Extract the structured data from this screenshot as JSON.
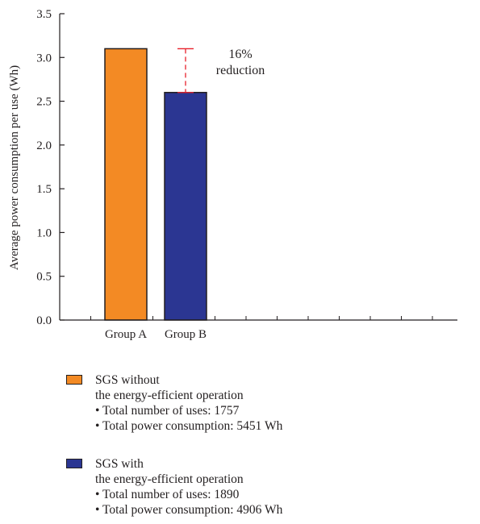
{
  "chart_data": {
    "type": "bar",
    "categories": [
      "Group A",
      "Group B"
    ],
    "values": [
      3.1,
      2.6
    ],
    "colors": [
      "#f38a24",
      "#2b3692"
    ],
    "xlabel": "",
    "ylabel": "Average power consumption per use (Wh)",
    "ylim": [
      0,
      3.5
    ],
    "yticks": [
      "0.0",
      "0.5",
      "1.0",
      "1.5",
      "2.0",
      "2.5",
      "3.0",
      "3.5"
    ],
    "grid": false,
    "annotation": {
      "line1": "16%",
      "line2": "reduction",
      "from_value": 3.1,
      "to_value": 2.6,
      "color": "#e8212b"
    }
  },
  "legend": [
    {
      "color": "#f38a24",
      "lines": [
        "SGS without",
        "the energy-efficient operation"
      ],
      "bullets": [
        "• Total number of uses: 1757",
        "• Total power consumption: 5451 Wh"
      ]
    },
    {
      "color": "#2b3692",
      "lines": [
        "SGS with",
        "the energy-efficient operation"
      ],
      "bullets": [
        "• Total number of uses: 1890",
        "• Total power consumption: 4906 Wh"
      ]
    }
  ]
}
